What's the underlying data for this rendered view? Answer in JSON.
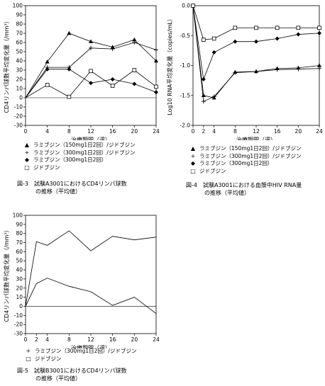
{
  "figures": [
    {
      "id": "fig3",
      "caption_num": "図-3",
      "caption_line1": "試験A3001におけるCD4リンパ球数",
      "caption_line2": "の推移（平均値）",
      "chart_data": {
        "type": "line",
        "xlabel": "治療期間（週）",
        "ylabel": "CD4リンパ球数平均変化量（/mm³）",
        "xlim": [
          0,
          24
        ],
        "ylim": [
          -30,
          100
        ],
        "xticks": [
          0,
          4,
          8,
          12,
          16,
          20,
          24
        ],
        "yticks": [
          -30,
          -20,
          -10,
          0,
          10,
          20,
          30,
          40,
          50,
          60,
          70,
          80,
          90,
          100
        ],
        "series": [
          {
            "name": "ラミブジン（150mg1日2回）/ジドブジン",
            "marker": "triangle",
            "x": [
              0,
              4,
              8,
              12,
              16,
              20,
              24
            ],
            "y": [
              0,
              39,
              70,
              61,
              55,
              63,
              40
            ]
          },
          {
            "name": "ラミブジン（300mg1日2回）/ジドブジン",
            "marker": "plus",
            "x": [
              0,
              4,
              8,
              12,
              16,
              20,
              24
            ],
            "y": [
              0,
              33,
              33,
              54,
              53,
              60,
              52
            ]
          },
          {
            "name": "ラミブジン（300mg1日2回）",
            "marker": "diamond",
            "x": [
              0,
              4,
              8,
              12,
              16,
              20,
              24
            ],
            "y": [
              0,
              31,
              31,
              16,
              20,
              15,
              6
            ]
          },
          {
            "name": "ジドブジン",
            "marker": "square",
            "x": [
              0,
              4,
              8,
              12,
              16,
              20,
              24
            ],
            "y": [
              0,
              14,
              1,
              29,
              13,
              30,
              12
            ]
          }
        ]
      }
    },
    {
      "id": "fig4",
      "caption_num": "図-4",
      "caption_line1": "試験A3001における血漿中HIV RNA量",
      "caption_line2": "の推移（平均値）",
      "chart_data": {
        "type": "line",
        "xlabel": "治療期間（週）",
        "ylabel": "Log10 RNA平均変化量（copies/mL）",
        "xlim": [
          0,
          24
        ],
        "ylim": [
          -2.0,
          0.0
        ],
        "xticks": [
          0,
          2,
          4,
          8,
          12,
          16,
          20,
          24
        ],
        "yticks": [
          -2.0,
          -1.5,
          -1.0,
          -0.5,
          0.0
        ],
        "ytick_labels": [
          "-2.0",
          "-1.5",
          "-1.0",
          "-0.5",
          "0.0"
        ],
        "series": [
          {
            "name": "ラミブジン（150mg1日2回）/ジドブジン",
            "marker": "triangle",
            "x": [
              0,
              2,
              4,
              8,
              12,
              16,
              20,
              24
            ],
            "y": [
              0,
              -1.5,
              -1.54,
              -1.11,
              -1.1,
              -1.05,
              -1.04,
              -1.0
            ]
          },
          {
            "name": "ラミブジン（300mg1日2回）/ジドブジン",
            "marker": "plus",
            "x": [
              0,
              2,
              4,
              8,
              12,
              16,
              20,
              24
            ],
            "y": [
              0,
              -1.6,
              -1.52,
              -1.12,
              -1.1,
              -1.07,
              -1.06,
              -1.05
            ]
          },
          {
            "name": "ラミブジン（300mg1日2回）",
            "marker": "diamond",
            "x": [
              0,
              2,
              4,
              8,
              12,
              16,
              20,
              24
            ],
            "y": [
              0,
              -1.23,
              -0.78,
              -0.6,
              -0.6,
              -0.55,
              -0.48,
              -0.46
            ]
          },
          {
            "name": "ジドブジン",
            "marker": "square",
            "x": [
              0,
              2,
              4,
              8,
              12,
              16,
              20,
              24
            ],
            "y": [
              0,
              -0.57,
              -0.55,
              -0.37,
              -0.37,
              -0.37,
              -0.37,
              -0.37
            ]
          }
        ]
      }
    },
    {
      "id": "fig5",
      "caption_num": "図-5",
      "caption_line1": "試験B3001におけるCD4リンパ球数",
      "caption_line2": "の推移（平均値）",
      "chart_data": {
        "type": "line",
        "xlabel": "治療期間（週）",
        "ylabel": "CD4リンパ球数平均変化量（/mm³）",
        "xlim": [
          0,
          24
        ],
        "ylim": [
          -30,
          100
        ],
        "xticks": [
          0,
          2,
          4,
          8,
          12,
          16,
          20,
          24
        ],
        "yticks": [
          -30,
          -20,
          -10,
          0,
          10,
          20,
          30,
          40,
          50,
          60,
          70,
          80,
          90,
          100
        ],
        "series": [
          {
            "name": "ラミブジン（300mg1日2回）/ジドブジン",
            "marker": "plus",
            "x": [
              0,
              2,
              4,
              8,
              12,
              16,
              20,
              24
            ],
            "y": [
              0,
              71,
              67,
              83,
              61,
              77,
              73,
              76
            ]
          },
          {
            "name": "ジドブジン",
            "marker": "square",
            "x": [
              0,
              2,
              4,
              8,
              12,
              16,
              20,
              24
            ],
            "y": [
              0,
              25,
              31,
              22,
              16,
              1,
              10,
              -8
            ]
          }
        ]
      }
    }
  ]
}
